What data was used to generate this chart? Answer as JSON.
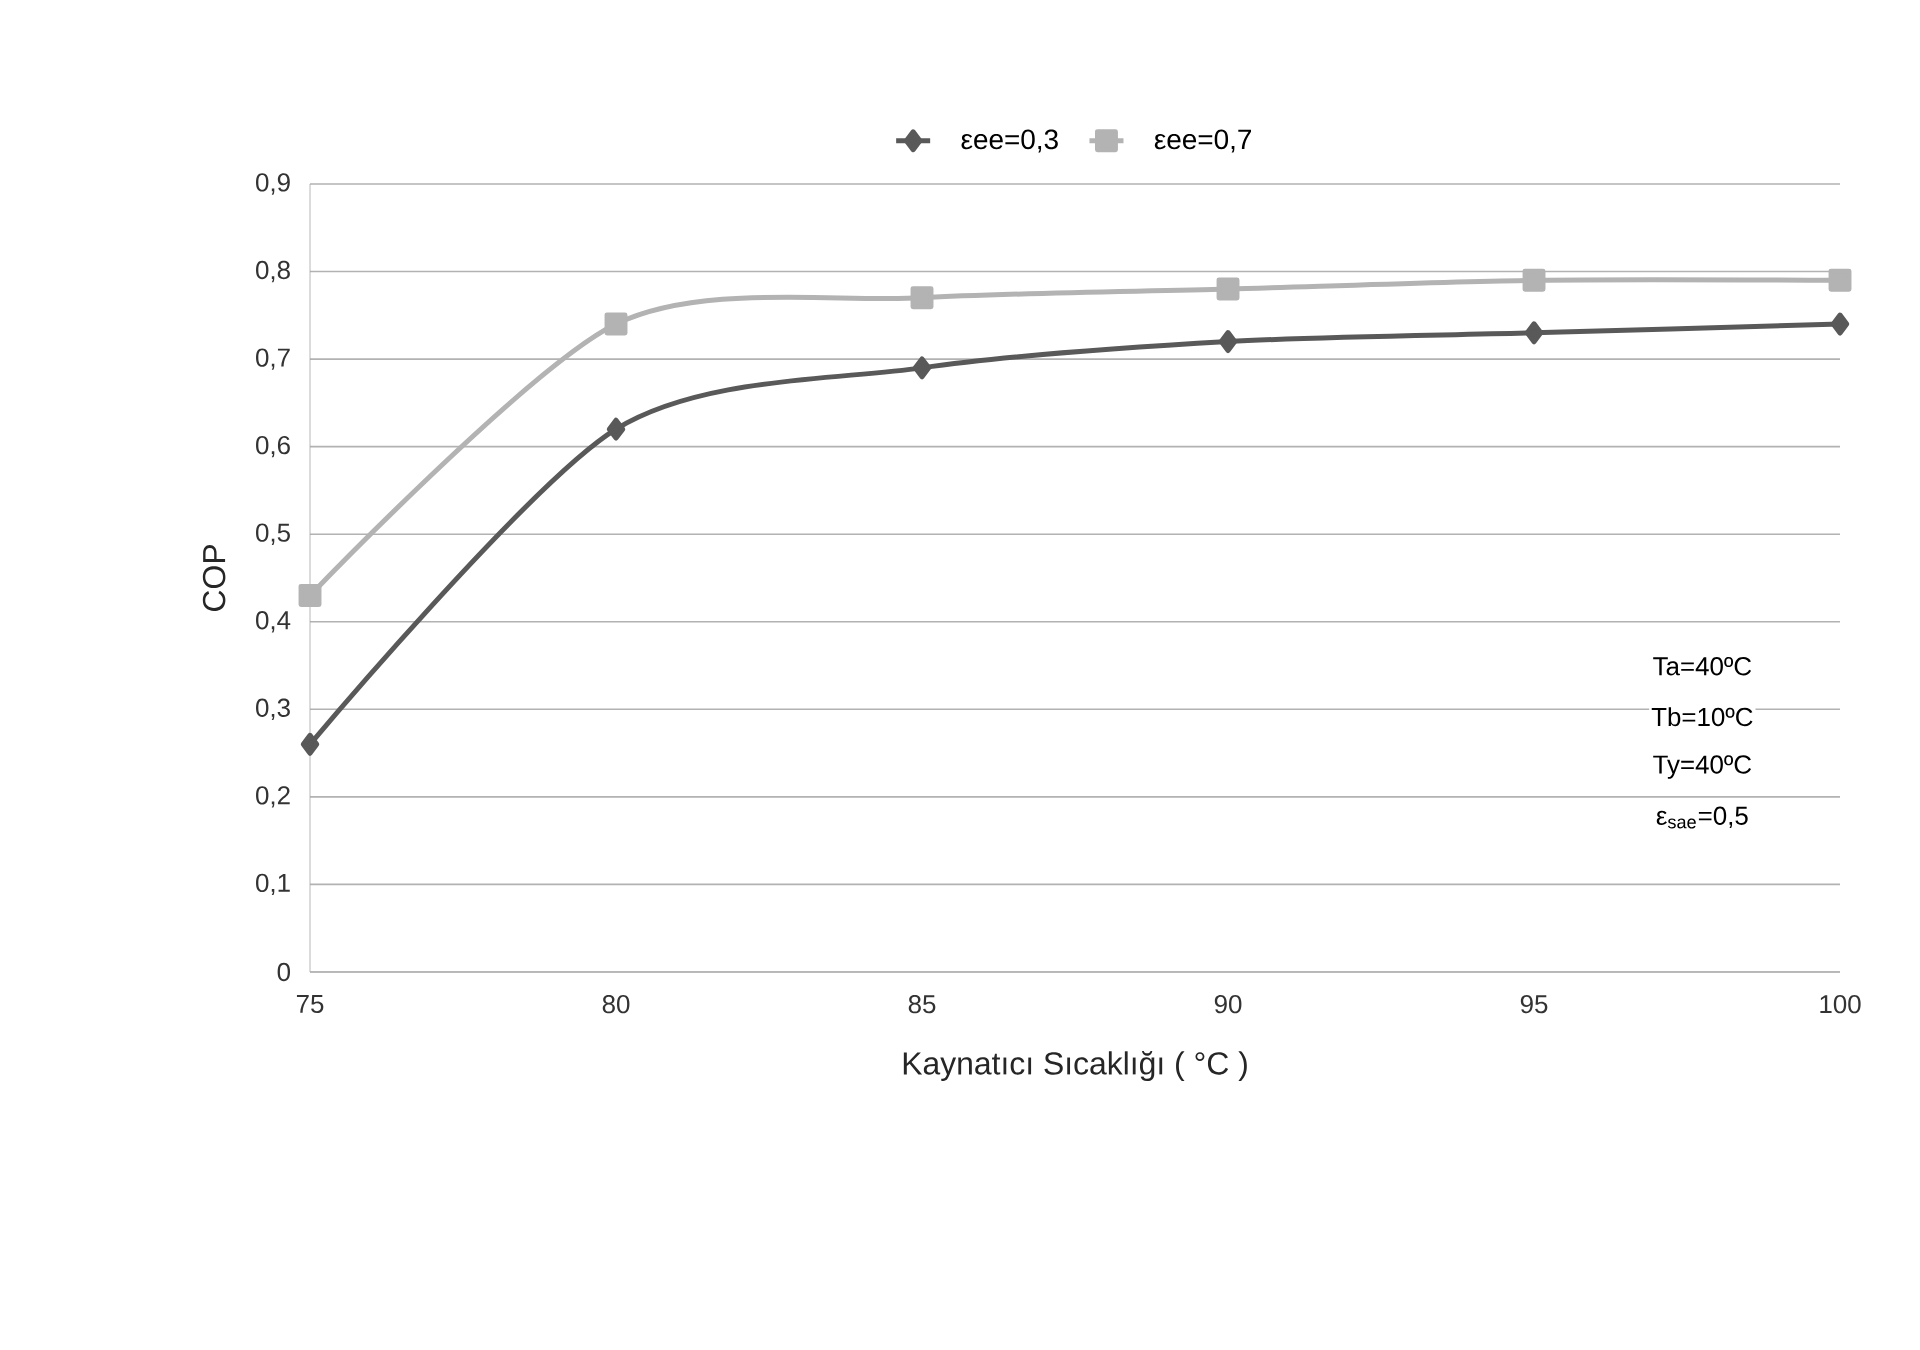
{
  "chart_data": {
    "type": "line",
    "xlabel": "Kaynatıcı Sıcaklığı ( °C )",
    "ylabel": "COP",
    "x": [
      75,
      80,
      85,
      90,
      95,
      100
    ],
    "series": [
      {
        "name": "εee=0,3",
        "color": "#595959",
        "marker": "diamond",
        "values": [
          0.26,
          0.62,
          0.69,
          0.72,
          0.73,
          0.74
        ]
      },
      {
        "name": "εee=0,7",
        "color": "#b3b3b3",
        "marker": "square",
        "values": [
          0.43,
          0.74,
          0.77,
          0.78,
          0.79,
          0.79
        ]
      }
    ],
    "xlim": [
      75,
      100
    ],
    "xticks": [
      75,
      80,
      85,
      90,
      95,
      100
    ],
    "ylim": [
      0,
      0.9
    ],
    "yticks": [
      0,
      {
        "value": 0.1,
        "label": "0,1"
      },
      {
        "value": 0.2,
        "label": "0,2"
      },
      {
        "value": 0.3,
        "label": "0,3"
      },
      {
        "value": 0.4,
        "label": "0,4"
      },
      {
        "value": 0.5,
        "label": "0,5"
      },
      {
        "value": 0.6,
        "label": "0,6"
      },
      {
        "value": 0.7,
        "label": "0,7"
      },
      {
        "value": 0.8,
        "label": "0,8"
      },
      {
        "value": 0.9,
        "label": "0,9"
      }
    ],
    "grid": "y",
    "legend": "top",
    "annotations": [
      "Ta=40ºC",
      "Tb=10ºC",
      "Ty=40ºC",
      "ε$_{sae}$=0,5"
    ]
  }
}
